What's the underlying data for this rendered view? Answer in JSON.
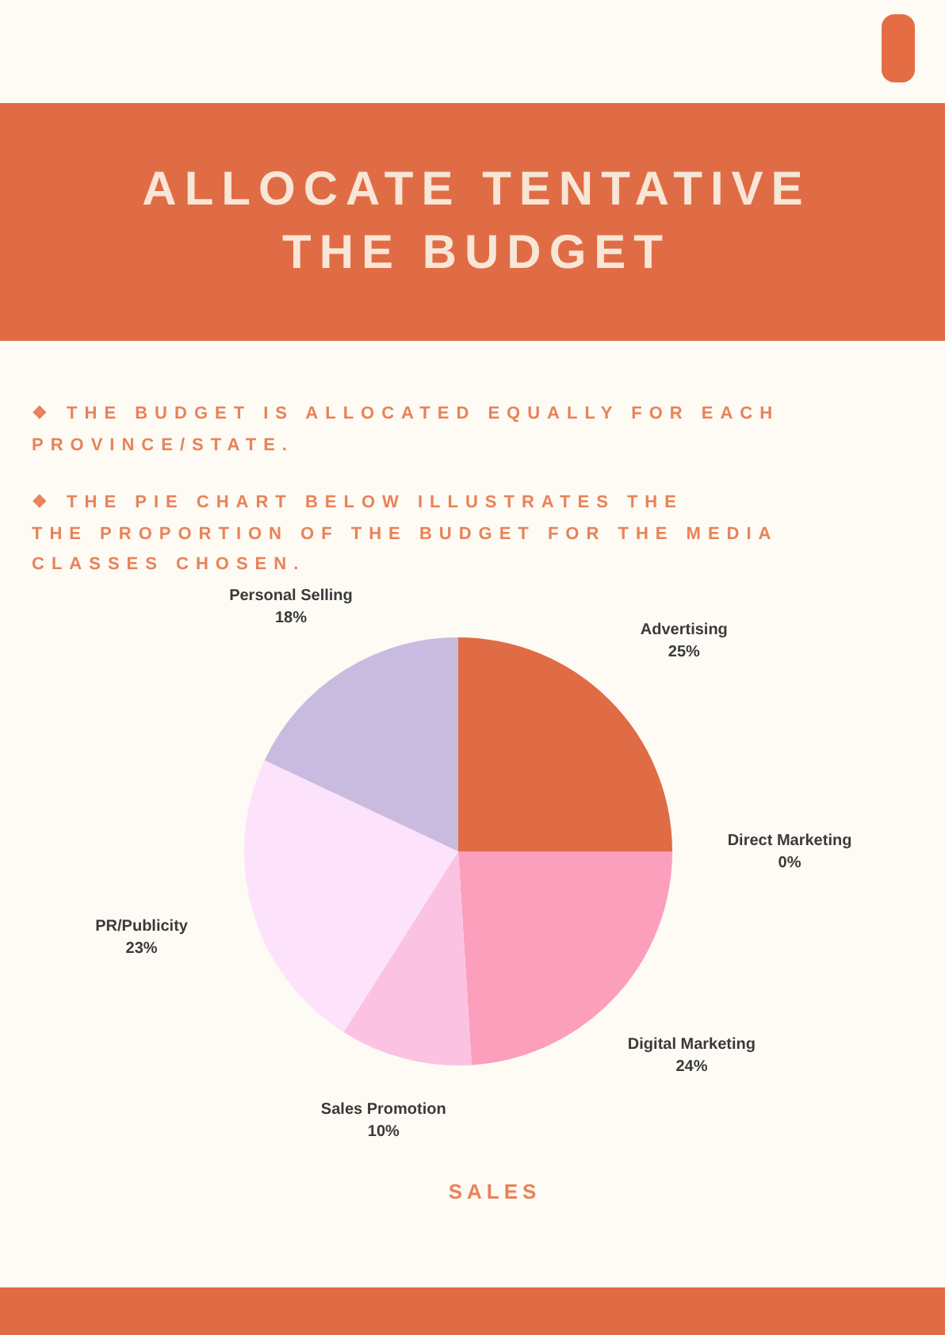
{
  "chart_data": {
    "type": "pie",
    "title": "ALLOCATE TENTATIVE\nTHE BUDGET",
    "annotations": [
      "❖ THE BUDGET IS ALLOCATED EQUALLY FOR EACH\nPROVINCE/STATE.",
      "❖ THE PIE CHART BELOW ILLUSTRATES THE\nTHE PROPORTION OF THE BUDGET FOR THE MEDIA\nCLASSES CHOSEN."
    ],
    "xlabel": "SALES",
    "categories": [
      "Advertising",
      "Direct Marketing",
      "Digital Marketing",
      "Sales Promotion",
      "PR/Publicity",
      "Personal Selling"
    ],
    "values": [
      25,
      0,
      24,
      10,
      23,
      18
    ],
    "value_labels": [
      "25%",
      "0%",
      "24%",
      "10%",
      "23%",
      "18%"
    ],
    "colors": [
      "#e06c45",
      "#f7a8b8",
      "#fb9fbd",
      "#fbc3e1",
      "#fde2fb",
      "#c9bbe0"
    ]
  }
}
